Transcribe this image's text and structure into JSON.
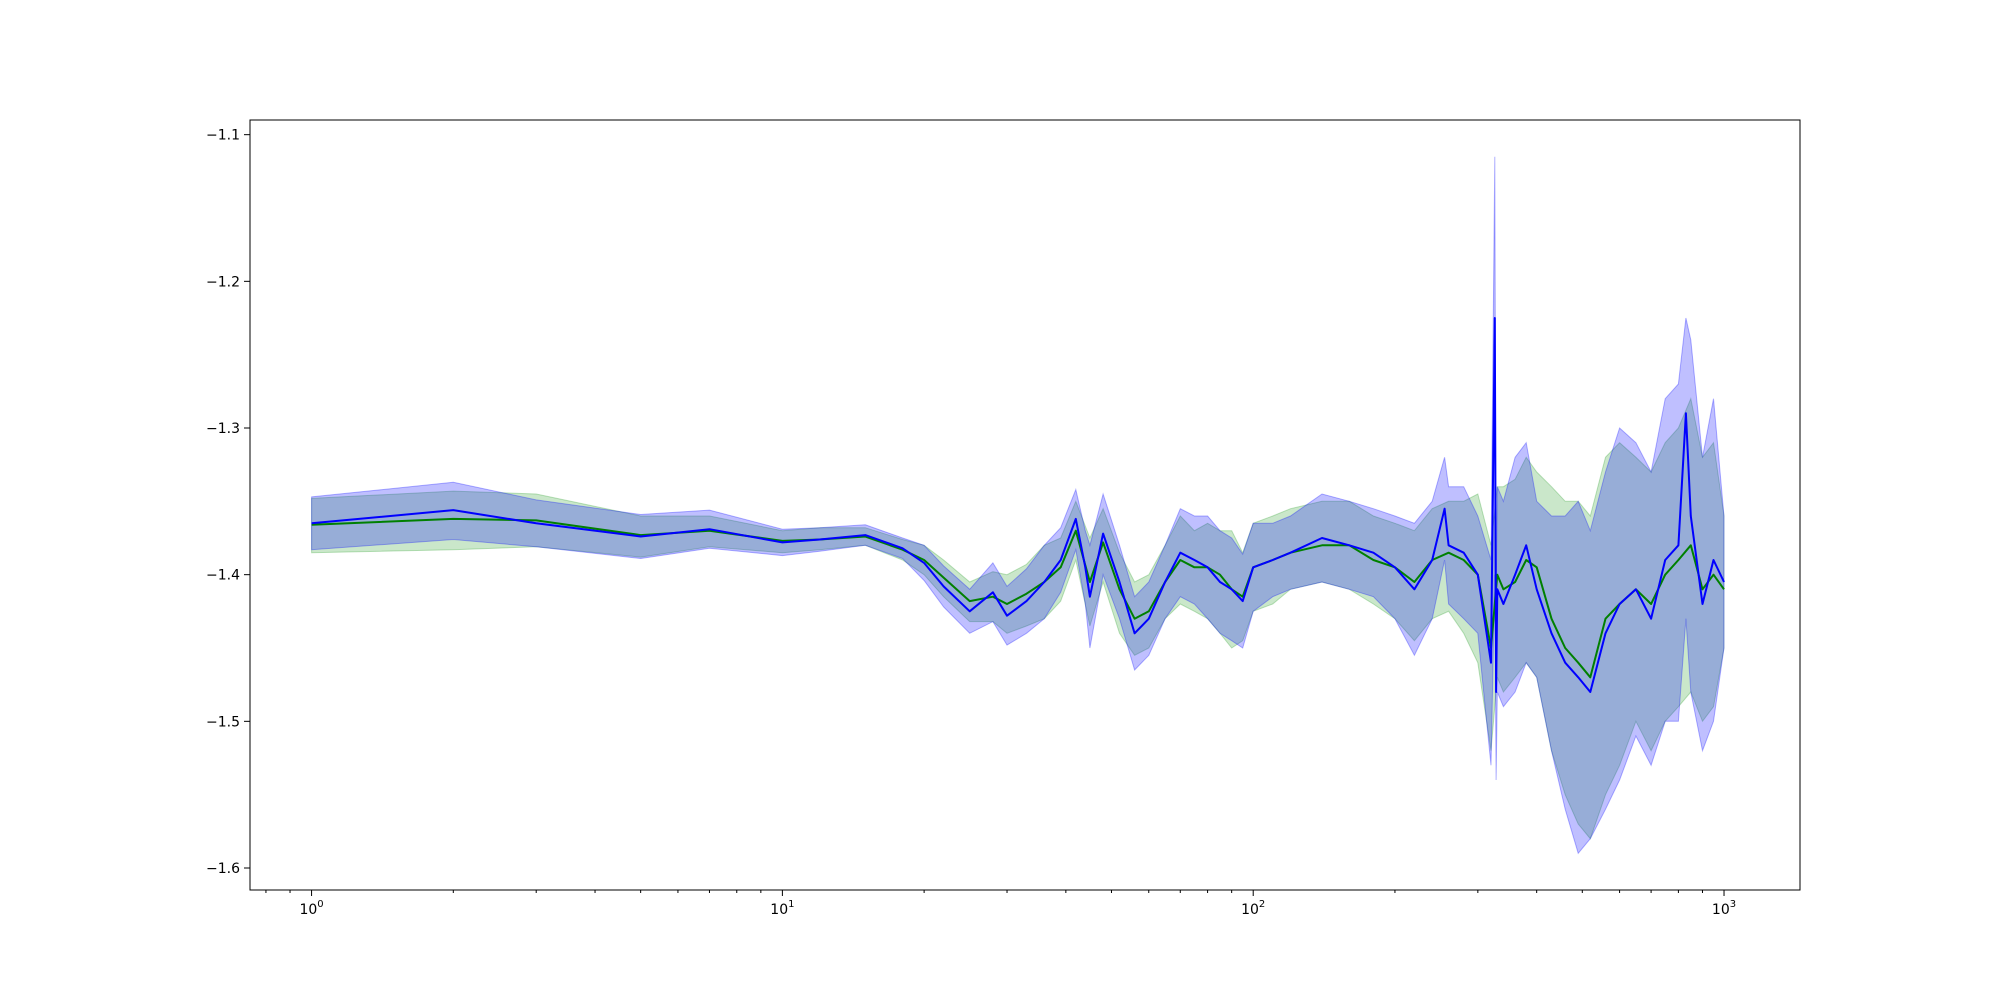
{
  "chart_data": {
    "type": "line",
    "title": "",
    "xlabel": "",
    "ylabel": "",
    "xscale": "log",
    "xlim": [
      0.74,
      1450
    ],
    "ylim": [
      -1.615,
      -1.09
    ],
    "grid": false,
    "legend": "none",
    "xticks": [
      {
        "value": 1,
        "base": "10",
        "exp": "0"
      },
      {
        "value": 10,
        "base": "10",
        "exp": "1"
      },
      {
        "value": 100,
        "base": "10",
        "exp": "2"
      },
      {
        "value": 1000,
        "base": "10",
        "exp": "3"
      }
    ],
    "yticks": [
      {
        "value": -1.1,
        "label": "−1.1"
      },
      {
        "value": -1.2,
        "label": "−1.2"
      },
      {
        "value": -1.3,
        "label": "−1.3"
      },
      {
        "value": -1.4,
        "label": "−1.4"
      },
      {
        "value": -1.5,
        "label": "−1.5"
      },
      {
        "value": -1.6,
        "label": "−1.6"
      }
    ],
    "series": [
      {
        "color": "#008000",
        "band_color": "#2ca02c",
        "band_opacity": 0.25,
        "x": [
          1,
          2,
          3,
          5,
          7,
          10,
          12,
          15,
          18,
          20,
          22,
          25,
          28,
          30,
          33,
          36,
          39,
          42,
          45,
          48,
          52,
          56,
          60,
          65,
          70,
          75,
          80,
          85,
          90,
          95,
          100,
          110,
          120,
          140,
          160,
          180,
          200,
          220,
          240,
          260,
          280,
          300,
          320,
          330,
          340,
          360,
          380,
          400,
          430,
          460,
          490,
          520,
          560,
          600,
          650,
          700,
          750,
          800,
          850,
          900,
          950,
          1000
        ],
        "y": [
          -1.366,
          -1.362,
          -1.363,
          -1.373,
          -1.37,
          -1.377,
          -1.376,
          -1.374,
          -1.383,
          -1.39,
          -1.402,
          -1.418,
          -1.415,
          -1.42,
          -1.413,
          -1.405,
          -1.395,
          -1.37,
          -1.405,
          -1.378,
          -1.41,
          -1.43,
          -1.425,
          -1.405,
          -1.39,
          -1.395,
          -1.395,
          -1.4,
          -1.41,
          -1.415,
          -1.395,
          -1.39,
          -1.385,
          -1.38,
          -1.38,
          -1.39,
          -1.395,
          -1.405,
          -1.39,
          -1.385,
          -1.39,
          -1.4,
          -1.45,
          -1.4,
          -1.41,
          -1.405,
          -1.39,
          -1.395,
          -1.43,
          -1.45,
          -1.46,
          -1.47,
          -1.43,
          -1.42,
          -1.41,
          -1.42,
          -1.4,
          -1.39,
          -1.38,
          -1.41,
          -1.4,
          -1.41
        ],
        "lower": [
          -1.385,
          -1.383,
          -1.381,
          -1.388,
          -1.381,
          -1.385,
          -1.383,
          -1.38,
          -1.39,
          -1.4,
          -1.415,
          -1.432,
          -1.432,
          -1.44,
          -1.435,
          -1.43,
          -1.418,
          -1.39,
          -1.435,
          -1.405,
          -1.44,
          -1.455,
          -1.45,
          -1.43,
          -1.42,
          -1.425,
          -1.43,
          -1.44,
          -1.45,
          -1.445,
          -1.425,
          -1.42,
          -1.41,
          -1.405,
          -1.41,
          -1.42,
          -1.43,
          -1.445,
          -1.43,
          -1.425,
          -1.44,
          -1.46,
          -1.52,
          -1.47,
          -1.48,
          -1.47,
          -1.46,
          -1.47,
          -1.52,
          -1.55,
          -1.57,
          -1.58,
          -1.55,
          -1.53,
          -1.5,
          -1.52,
          -1.5,
          -1.49,
          -1.48,
          -1.5,
          -1.49,
          -1.45
        ],
        "upper": [
          -1.348,
          -1.343,
          -1.345,
          -1.36,
          -1.36,
          -1.37,
          -1.368,
          -1.368,
          -1.376,
          -1.38,
          -1.39,
          -1.405,
          -1.398,
          -1.4,
          -1.393,
          -1.38,
          -1.375,
          -1.35,
          -1.375,
          -1.355,
          -1.385,
          -1.405,
          -1.4,
          -1.38,
          -1.36,
          -1.37,
          -1.365,
          -1.37,
          -1.37,
          -1.385,
          -1.365,
          -1.36,
          -1.355,
          -1.35,
          -1.35,
          -1.36,
          -1.365,
          -1.37,
          -1.355,
          -1.35,
          -1.35,
          -1.345,
          -1.38,
          -1.34,
          -1.34,
          -1.335,
          -1.32,
          -1.33,
          -1.34,
          -1.35,
          -1.35,
          -1.36,
          -1.32,
          -1.31,
          -1.32,
          -1.33,
          -1.31,
          -1.3,
          -1.28,
          -1.32,
          -1.31,
          -1.36
        ]
      },
      {
        "color": "#0000ff",
        "band_color": "#0000ff",
        "band_opacity": 0.25,
        "x": [
          1,
          2,
          3,
          5,
          7,
          10,
          12,
          15,
          18,
          20,
          22,
          25,
          28,
          30,
          33,
          36,
          39,
          42,
          44,
          45,
          48,
          52,
          56,
          60,
          65,
          70,
          75,
          80,
          85,
          90,
          95,
          100,
          110,
          120,
          140,
          160,
          180,
          200,
          220,
          240,
          255,
          260,
          280,
          300,
          320,
          326,
          328,
          330,
          340,
          360,
          380,
          400,
          430,
          460,
          490,
          520,
          560,
          600,
          650,
          700,
          750,
          800,
          830,
          850,
          900,
          950,
          1000
        ],
        "y": [
          -1.365,
          -1.356,
          -1.365,
          -1.374,
          -1.369,
          -1.378,
          -1.376,
          -1.373,
          -1.382,
          -1.392,
          -1.408,
          -1.425,
          -1.412,
          -1.428,
          -1.418,
          -1.405,
          -1.39,
          -1.362,
          -1.395,
          -1.415,
          -1.372,
          -1.405,
          -1.44,
          -1.43,
          -1.405,
          -1.385,
          -1.39,
          -1.395,
          -1.405,
          -1.41,
          -1.418,
          -1.395,
          -1.39,
          -1.385,
          -1.375,
          -1.38,
          -1.385,
          -1.395,
          -1.41,
          -1.39,
          -1.355,
          -1.38,
          -1.385,
          -1.4,
          -1.46,
          -1.225,
          -1.48,
          -1.41,
          -1.42,
          -1.4,
          -1.38,
          -1.41,
          -1.44,
          -1.46,
          -1.47,
          -1.48,
          -1.44,
          -1.42,
          -1.41,
          -1.43,
          -1.39,
          -1.38,
          -1.29,
          -1.36,
          -1.42,
          -1.39,
          -1.405
        ],
        "lower": [
          -1.383,
          -1.376,
          -1.381,
          -1.389,
          -1.382,
          -1.387,
          -1.384,
          -1.38,
          -1.389,
          -1.404,
          -1.422,
          -1.44,
          -1.432,
          -1.448,
          -1.44,
          -1.43,
          -1.412,
          -1.383,
          -1.42,
          -1.45,
          -1.4,
          -1.43,
          -1.465,
          -1.455,
          -1.43,
          -1.415,
          -1.42,
          -1.43,
          -1.44,
          -1.445,
          -1.45,
          -1.425,
          -1.415,
          -1.41,
          -1.405,
          -1.41,
          -1.415,
          -1.43,
          -1.455,
          -1.43,
          -1.39,
          -1.42,
          -1.43,
          -1.44,
          -1.53,
          -1.4,
          -1.54,
          -1.48,
          -1.49,
          -1.48,
          -1.46,
          -1.47,
          -1.52,
          -1.56,
          -1.59,
          -1.58,
          -1.56,
          -1.54,
          -1.51,
          -1.53,
          -1.5,
          -1.5,
          -1.43,
          -1.48,
          -1.52,
          -1.5,
          -1.45
        ],
        "upper": [
          -1.347,
          -1.337,
          -1.349,
          -1.359,
          -1.356,
          -1.369,
          -1.368,
          -1.366,
          -1.375,
          -1.38,
          -1.394,
          -1.41,
          -1.392,
          -1.408,
          -1.396,
          -1.38,
          -1.368,
          -1.342,
          -1.37,
          -1.38,
          -1.345,
          -1.38,
          -1.415,
          -1.405,
          -1.38,
          -1.355,
          -1.36,
          -1.36,
          -1.37,
          -1.375,
          -1.386,
          -1.365,
          -1.365,
          -1.36,
          -1.345,
          -1.35,
          -1.355,
          -1.36,
          -1.365,
          -1.35,
          -1.32,
          -1.34,
          -1.34,
          -1.36,
          -1.39,
          -1.115,
          -1.42,
          -1.34,
          -1.35,
          -1.32,
          -1.31,
          -1.35,
          -1.36,
          -1.36,
          -1.35,
          -1.37,
          -1.33,
          -1.3,
          -1.31,
          -1.33,
          -1.28,
          -1.27,
          -1.225,
          -1.24,
          -1.32,
          -1.28,
          -1.36
        ]
      }
    ]
  }
}
